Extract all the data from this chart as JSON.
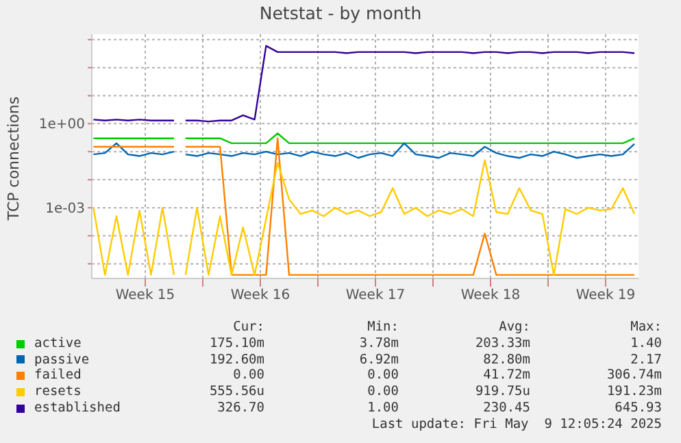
{
  "chart_data": {
    "type": "line",
    "title": "Netstat - by month",
    "ylabel": "TCP connections",
    "log": "y",
    "grid": true,
    "legend": "bottom",
    "marker": "none",
    "line_style": "solid",
    "x": [
      "2025-04-06T14:24",
      "2025-04-07T07:12",
      "2025-04-08T00:00",
      "2025-04-08T16:48",
      "2025-04-09T09:36",
      "2025-04-10T02:24",
      "2025-04-10T19:12",
      "2025-04-11T12:00",
      "2025-04-11T20:24",
      "2025-04-12T04:48",
      "2025-04-12T21:36",
      "2025-04-13T14:24",
      "2025-04-14T07:12",
      "2025-04-15T00:00",
      "2025-04-15T16:48",
      "2025-04-16T09:36",
      "2025-04-17T02:24",
      "2025-04-17T19:12",
      "2025-04-18T12:00",
      "2025-04-19T04:48",
      "2025-04-19T21:36",
      "2025-04-20T14:24",
      "2025-04-21T07:12",
      "2025-04-22T00:00",
      "2025-04-22T16:48",
      "2025-04-23T09:36",
      "2025-04-24T02:24",
      "2025-04-24T19:12",
      "2025-04-25T12:00",
      "2025-04-26T04:48",
      "2025-04-26T21:36",
      "2025-04-27T14:24",
      "2025-04-28T07:12",
      "2025-04-29T00:00",
      "2025-04-29T16:48",
      "2025-04-30T09:36",
      "2025-05-01T02:24",
      "2025-05-01T19:12",
      "2025-05-02T12:00",
      "2025-05-03T04:48",
      "2025-05-03T21:36",
      "2025-05-04T14:24",
      "2025-05-05T07:12",
      "2025-05-06T00:00",
      "2025-05-06T16:48",
      "2025-05-07T09:36",
      "2025-05-08T02:24",
      "2025-05-08T19:12",
      "2025-05-09T12:00"
    ],
    "xlim": [
      "2025-04-06T12:00",
      "2025-05-09T18:00"
    ],
    "xticks": [
      {
        "value": "2025-04-09T18:00",
        "label": "Week 15"
      },
      {
        "value": "2025-04-13T06:00",
        "label": null
      },
      {
        "value": "2025-04-16T18:00",
        "label": "Week 16"
      },
      {
        "value": "2025-04-20T06:00",
        "label": null
      },
      {
        "value": "2025-04-23T18:00",
        "label": "Week 17"
      },
      {
        "value": "2025-04-27T06:00",
        "label": null
      },
      {
        "value": "2025-04-30T18:00",
        "label": "Week 18"
      },
      {
        "value": "2025-05-04T06:00",
        "label": null
      },
      {
        "value": "2025-05-07T18:00",
        "label": "Week 19"
      }
    ],
    "ylim": [
      3e-06,
      1550
    ],
    "yticks": [
      {
        "value": 1e-05,
        "label": null
      },
      {
        "value": 0.0001,
        "label": null
      },
      {
        "value": 0.001,
        "label": "1e-03"
      },
      {
        "value": 0.01,
        "label": null
      },
      {
        "value": 0.1,
        "label": null
      },
      {
        "value": 1,
        "label": "1e+00"
      },
      {
        "value": 10,
        "label": null
      },
      {
        "value": 100,
        "label": null
      },
      {
        "value": 1000,
        "label": null
      }
    ],
    "series": [
      {
        "name": "active",
        "color": "#00cc00",
        "values": [
          0.3,
          0.3,
          0.3,
          0.3,
          0.3,
          0.3,
          0.3,
          0.3,
          null,
          0.3,
          0.3,
          0.3,
          0.3,
          0.2,
          0.2,
          0.2,
          0.2,
          0.45,
          0.2,
          0.2,
          0.2,
          0.2,
          0.2,
          0.2,
          0.2,
          0.2,
          0.2,
          0.2,
          0.2,
          0.2,
          0.2,
          0.2,
          0.2,
          0.2,
          0.2,
          0.2,
          0.2,
          0.2,
          0.2,
          0.2,
          0.2,
          0.2,
          0.2,
          0.2,
          0.2,
          0.2,
          0.2,
          0.2,
          0.3
        ]
      },
      {
        "name": "passive",
        "color": "#0066b3",
        "values": [
          0.08,
          0.09,
          0.2,
          0.08,
          0.07,
          0.09,
          0.08,
          0.1,
          null,
          0.08,
          0.07,
          0.09,
          0.08,
          0.07,
          0.09,
          0.08,
          0.1,
          0.08,
          0.09,
          0.07,
          0.1,
          0.08,
          0.07,
          0.09,
          0.06,
          0.08,
          0.09,
          0.07,
          0.2,
          0.08,
          0.07,
          0.06,
          0.09,
          0.08,
          0.07,
          0.15,
          0.09,
          0.07,
          0.06,
          0.08,
          0.07,
          0.1,
          0.08,
          0.06,
          0.07,
          0.08,
          0.07,
          0.08,
          0.19
        ]
      },
      {
        "name": "failed",
        "color": "#ff8000",
        "values": [
          0.15,
          0.15,
          0.15,
          0.15,
          0.15,
          0.15,
          0.15,
          0.15,
          null,
          0.15,
          0.15,
          0.15,
          0.15,
          4e-06,
          4e-06,
          4e-06,
          4e-06,
          0.3,
          4e-06,
          4e-06,
          4e-06,
          4e-06,
          4e-06,
          4e-06,
          4e-06,
          4e-06,
          4e-06,
          4e-06,
          4e-06,
          4e-06,
          4e-06,
          4e-06,
          4e-06,
          4e-06,
          4e-06,
          0.00012,
          4e-06,
          4e-06,
          4e-06,
          4e-06,
          4e-06,
          4e-06,
          4e-06,
          4e-06,
          4e-06,
          4e-06,
          4e-06,
          4e-06,
          4e-06
        ]
      },
      {
        "name": "resets",
        "color": "#ffcc00",
        "values": [
          0.001,
          4e-06,
          0.0005,
          4e-06,
          0.0008,
          4e-06,
          0.001,
          4e-06,
          null,
          4e-06,
          0.001,
          4e-06,
          0.0005,
          4e-06,
          0.0002,
          4e-06,
          0.0004,
          0.04,
          0.002,
          0.0006,
          0.0008,
          0.0005,
          0.001,
          0.0006,
          0.0008,
          0.0005,
          0.0007,
          0.005,
          0.0006,
          0.001,
          0.0005,
          0.0008,
          0.0006,
          0.0009,
          0.0005,
          0.05,
          0.0007,
          0.0006,
          0.005,
          0.0008,
          0.0006,
          4e-06,
          0.0009,
          0.0006,
          0.001,
          0.0008,
          0.0009,
          0.005,
          0.0006
        ]
      },
      {
        "name": "established",
        "color": "#330099",
        "values": [
          1.4,
          1.3,
          1.4,
          1.3,
          1.4,
          1.3,
          1.3,
          1.3,
          null,
          1.3,
          1.3,
          1.2,
          1.3,
          1.3,
          2,
          1.4,
          600,
          360,
          360,
          360,
          360,
          360,
          360,
          330,
          360,
          360,
          360,
          360,
          360,
          330,
          360,
          360,
          360,
          360,
          330,
          360,
          360,
          330,
          360,
          360,
          330,
          360,
          360,
          360,
          330,
          360,
          360,
          360,
          330
        ]
      }
    ],
    "annotations": [
      "Cur:",
      "Min:",
      "Avg:",
      "Max:",
      "175.10m",
      "3.78m",
      "203.33m",
      "1.40",
      "192.60m",
      "6.92m",
      "82.80m",
      "2.17",
      "0.00",
      "0.00",
      "41.72m",
      "306.74m",
      "555.56u",
      "0.00",
      "919.75u",
      "191.23m",
      "326.70",
      "1.00",
      "230.45",
      "645.93",
      "Last update: Fri May  9 12:05:24 2025"
    ]
  }
}
